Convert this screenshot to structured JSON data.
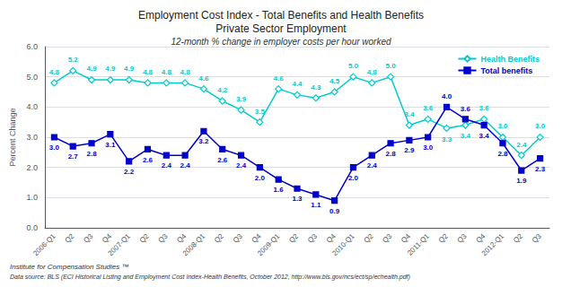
{
  "chart_data": {
    "type": "line",
    "title": "Employment Cost Index - Total Benefits and Health Benefits\nPrivate Sector Employment",
    "subtitle": "12-month % change in employer costs per hour worked",
    "ylabel": "Percent Change",
    "footnotes": [
      "Institute for Compensation Studies ™",
      "Data source: BLS (ECI Historical Listing and Employment Cost Index-Health Benefits, October 2012, http://www.bls.gov/ncs/ect/sp/echealth.pdf)"
    ],
    "categories": [
      "2006-Q1",
      "Q2",
      "Q3",
      "Q4",
      "2007-Q1",
      "Q2",
      "Q3",
      "Q4",
      "2008-Q1",
      "Q2",
      "Q3",
      "Q4",
      "2009-Q1",
      "Q2",
      "Q3",
      "Q4",
      "2010-Q1",
      "Q2",
      "Q3",
      "Q4",
      "2011-Q1",
      "Q2",
      "Q3",
      "Q4",
      "2012-Q1",
      "Q2",
      "Q3"
    ],
    "series": [
      {
        "name": "Health Benefits",
        "color": "#00CCCC",
        "marker": "diamond_open",
        "values": [
          4.8,
          5.2,
          4.9,
          4.9,
          4.9,
          4.8,
          4.8,
          4.8,
          4.6,
          4.2,
          3.9,
          3.5,
          4.6,
          4.4,
          4.3,
          4.5,
          5.0,
          4.8,
          5.0,
          3.4,
          3.6,
          3.3,
          3.4,
          3.6,
          3.0,
          2.4,
          3.0
        ],
        "value_labels": [
          "4.8",
          "5.2",
          "4.9",
          "4.9",
          "4.9",
          "4.8",
          "4.8",
          "4.8",
          "4.6",
          "4.2",
          "3.9",
          "3.5",
          "4.6",
          "4.4",
          "4.3",
          "4.5",
          "5.0",
          "4.8",
          "5.0",
          "3.4",
          "3.6",
          "3.3",
          "3.4",
          "3.6",
          "3.0",
          "2.4",
          "3.0"
        ]
      },
      {
        "name": "Total benefits",
        "color": "#0000CD",
        "marker": "square",
        "values": [
          3.0,
          2.7,
          2.8,
          3.1,
          2.2,
          2.6,
          2.4,
          2.4,
          3.2,
          2.6,
          2.4,
          2.0,
          1.6,
          1.3,
          1.1,
          0.9,
          2.0,
          2.4,
          2.8,
          2.9,
          3.0,
          4.0,
          3.6,
          3.4,
          2.8,
          1.9,
          2.3
        ],
        "value_labels": [
          "3.0",
          "2.7",
          "2.8",
          "3.1",
          "2.2",
          "2.6",
          "2.4",
          "2.4",
          "3.2",
          "2.6",
          "2.4",
          "2.0",
          "1.6",
          "1.3",
          "1.1",
          "0.9",
          "2.0",
          "2.4",
          "2.8",
          "2.9",
          "3.0",
          "4.0",
          "3.6",
          "3.4",
          "2.8",
          "1.9",
          "2.3"
        ]
      }
    ],
    "ylim": [
      0.0,
      6.0
    ],
    "yticks": [
      {
        "value": 0,
        "label": "0.0"
      },
      {
        "value": 1,
        "label": "1.0"
      },
      {
        "value": 2,
        "label": "2.0"
      },
      {
        "value": 3,
        "label": "3.0"
      },
      {
        "value": 4,
        "label": "4.0"
      },
      {
        "value": 5,
        "label": "5.0"
      },
      {
        "value": 6,
        "label": "6.0"
      }
    ],
    "grid": true,
    "legend": "upper right",
    "data_labels": true
  }
}
